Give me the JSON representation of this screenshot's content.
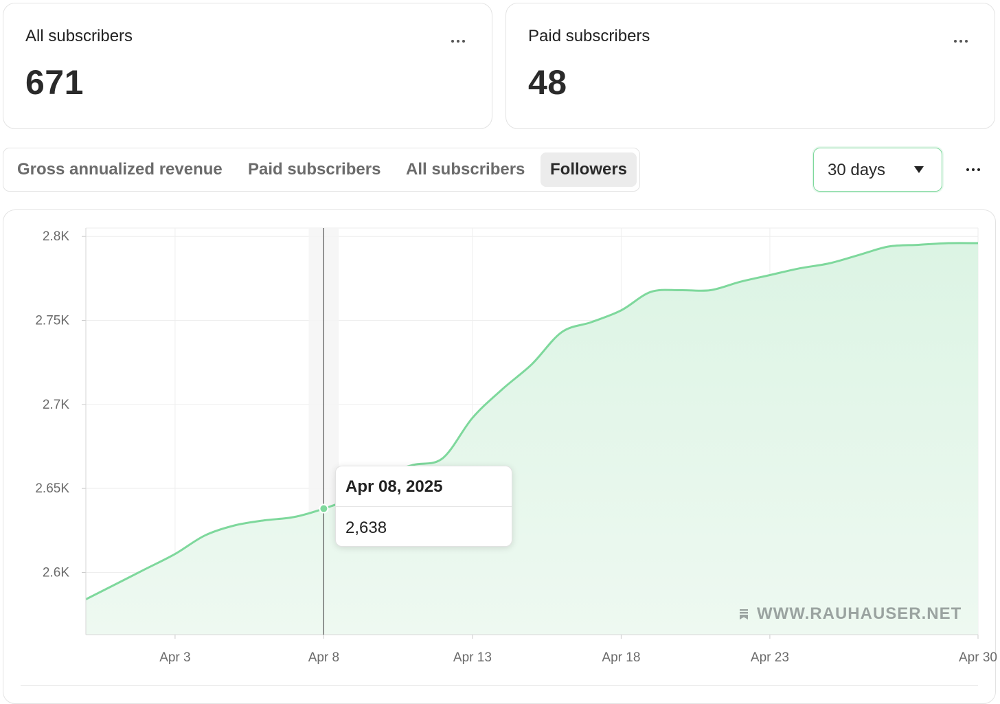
{
  "cards": [
    {
      "title": "All subscribers",
      "value": "671"
    },
    {
      "title": "Paid subscribers",
      "value": "48"
    }
  ],
  "tabs": [
    {
      "label": "Gross annualized revenue",
      "active": false
    },
    {
      "label": "Paid subscribers",
      "active": false
    },
    {
      "label": "All subscribers",
      "active": false
    },
    {
      "label": "Followers",
      "active": true
    }
  ],
  "range_select": {
    "value": "30 days"
  },
  "tooltip": {
    "date": "Apr 08, 2025",
    "value": "2,638"
  },
  "watermark": "WWW.RAUHAUSER.NET",
  "icons": [
    "more-icon",
    "caret-down-icon",
    "bookmark-icon"
  ],
  "colors": {
    "line": "#7ed89c",
    "fill": "#e2f6e8",
    "accent_border": "#7ed89c"
  },
  "chart_data": {
    "type": "area",
    "x_tick_labels": [
      "Apr 3",
      "Apr 8",
      "Apr 13",
      "Apr 18",
      "Apr 23",
      "Apr 30"
    ],
    "x_tick_days": [
      3,
      8,
      13,
      18,
      23,
      30
    ],
    "y_tick_labels": [
      "2.8K",
      "2.75K",
      "2.7K",
      "2.65K",
      "2.6K"
    ],
    "y_tick_values": [
      2800,
      2750,
      2700,
      2650,
      2600
    ],
    "xlim": [
      0,
      30
    ],
    "ylim": [
      2563,
      2805
    ],
    "grid": true,
    "highlight_day": 8,
    "points": [
      [
        0,
        2584
      ],
      [
        1,
        2593
      ],
      [
        2,
        2602
      ],
      [
        3,
        2611
      ],
      [
        4,
        2622
      ],
      [
        5,
        2628
      ],
      [
        6,
        2631
      ],
      [
        7,
        2633
      ],
      [
        8,
        2638
      ],
      [
        9,
        2645
      ],
      [
        10,
        2658
      ],
      [
        11,
        2664
      ],
      [
        12,
        2668
      ],
      [
        13,
        2692
      ],
      [
        14,
        2709
      ],
      [
        15,
        2724
      ],
      [
        16,
        2743
      ],
      [
        17,
        2749
      ],
      [
        18,
        2756
      ],
      [
        19,
        2767
      ],
      [
        20,
        2768
      ],
      [
        21,
        2768
      ],
      [
        22,
        2773
      ],
      [
        23,
        2777
      ],
      [
        24,
        2781
      ],
      [
        25,
        2784
      ],
      [
        26,
        2789
      ],
      [
        27,
        2794
      ],
      [
        28,
        2795
      ],
      [
        29,
        2796
      ],
      [
        30,
        2796
      ]
    ]
  }
}
